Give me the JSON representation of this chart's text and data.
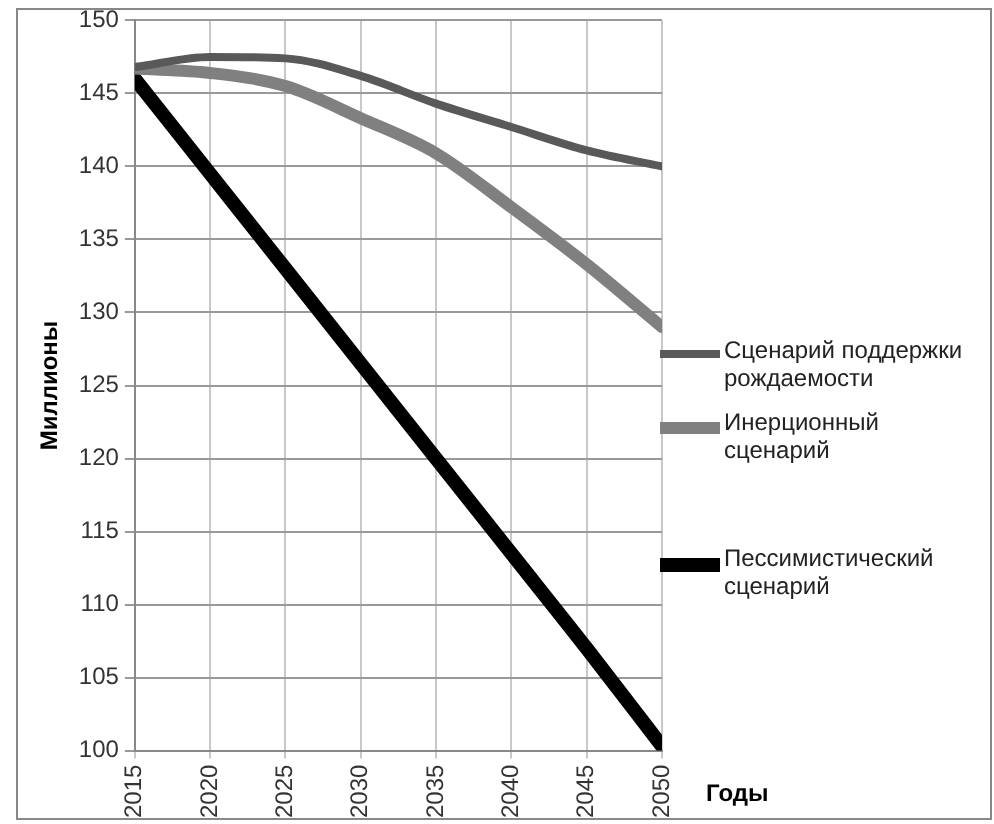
{
  "chart_data": {
    "type": "line",
    "xlabel": "Годы",
    "ylabel": "Миллионы",
    "x": [
      2015,
      2020,
      2025,
      2030,
      2035,
      2040,
      2045,
      2050
    ],
    "series": [
      {
        "name": "Сценарий поддержки рождаемости",
        "color": "#595959",
        "values": [
          146.8,
          147.5,
          147.4,
          146.2,
          144.3,
          142.7,
          141.1,
          140.0
        ]
      },
      {
        "name": "Инерционный сценарий",
        "color": "#808080",
        "values": [
          146.7,
          146.4,
          145.5,
          143.3,
          140.9,
          137.2,
          133.3,
          129.0
        ]
      },
      {
        "name": "Пессимистический сценарий",
        "color": "#000000",
        "values": [
          146.0,
          139.5,
          133.0,
          126.5,
          120.0,
          113.5,
          107.0,
          100.3
        ]
      }
    ],
    "xlim": [
      2015,
      2050
    ],
    "xticks": [
      2015,
      2020,
      2025,
      2030,
      2035,
      2040,
      2045,
      2050
    ],
    "ylim": [
      100,
      150
    ],
    "yticks": [
      100,
      105,
      110,
      115,
      120,
      125,
      130,
      135,
      140,
      145,
      150
    ],
    "grid": true,
    "legend": "right",
    "marker": "none",
    "line_style": "solid"
  }
}
